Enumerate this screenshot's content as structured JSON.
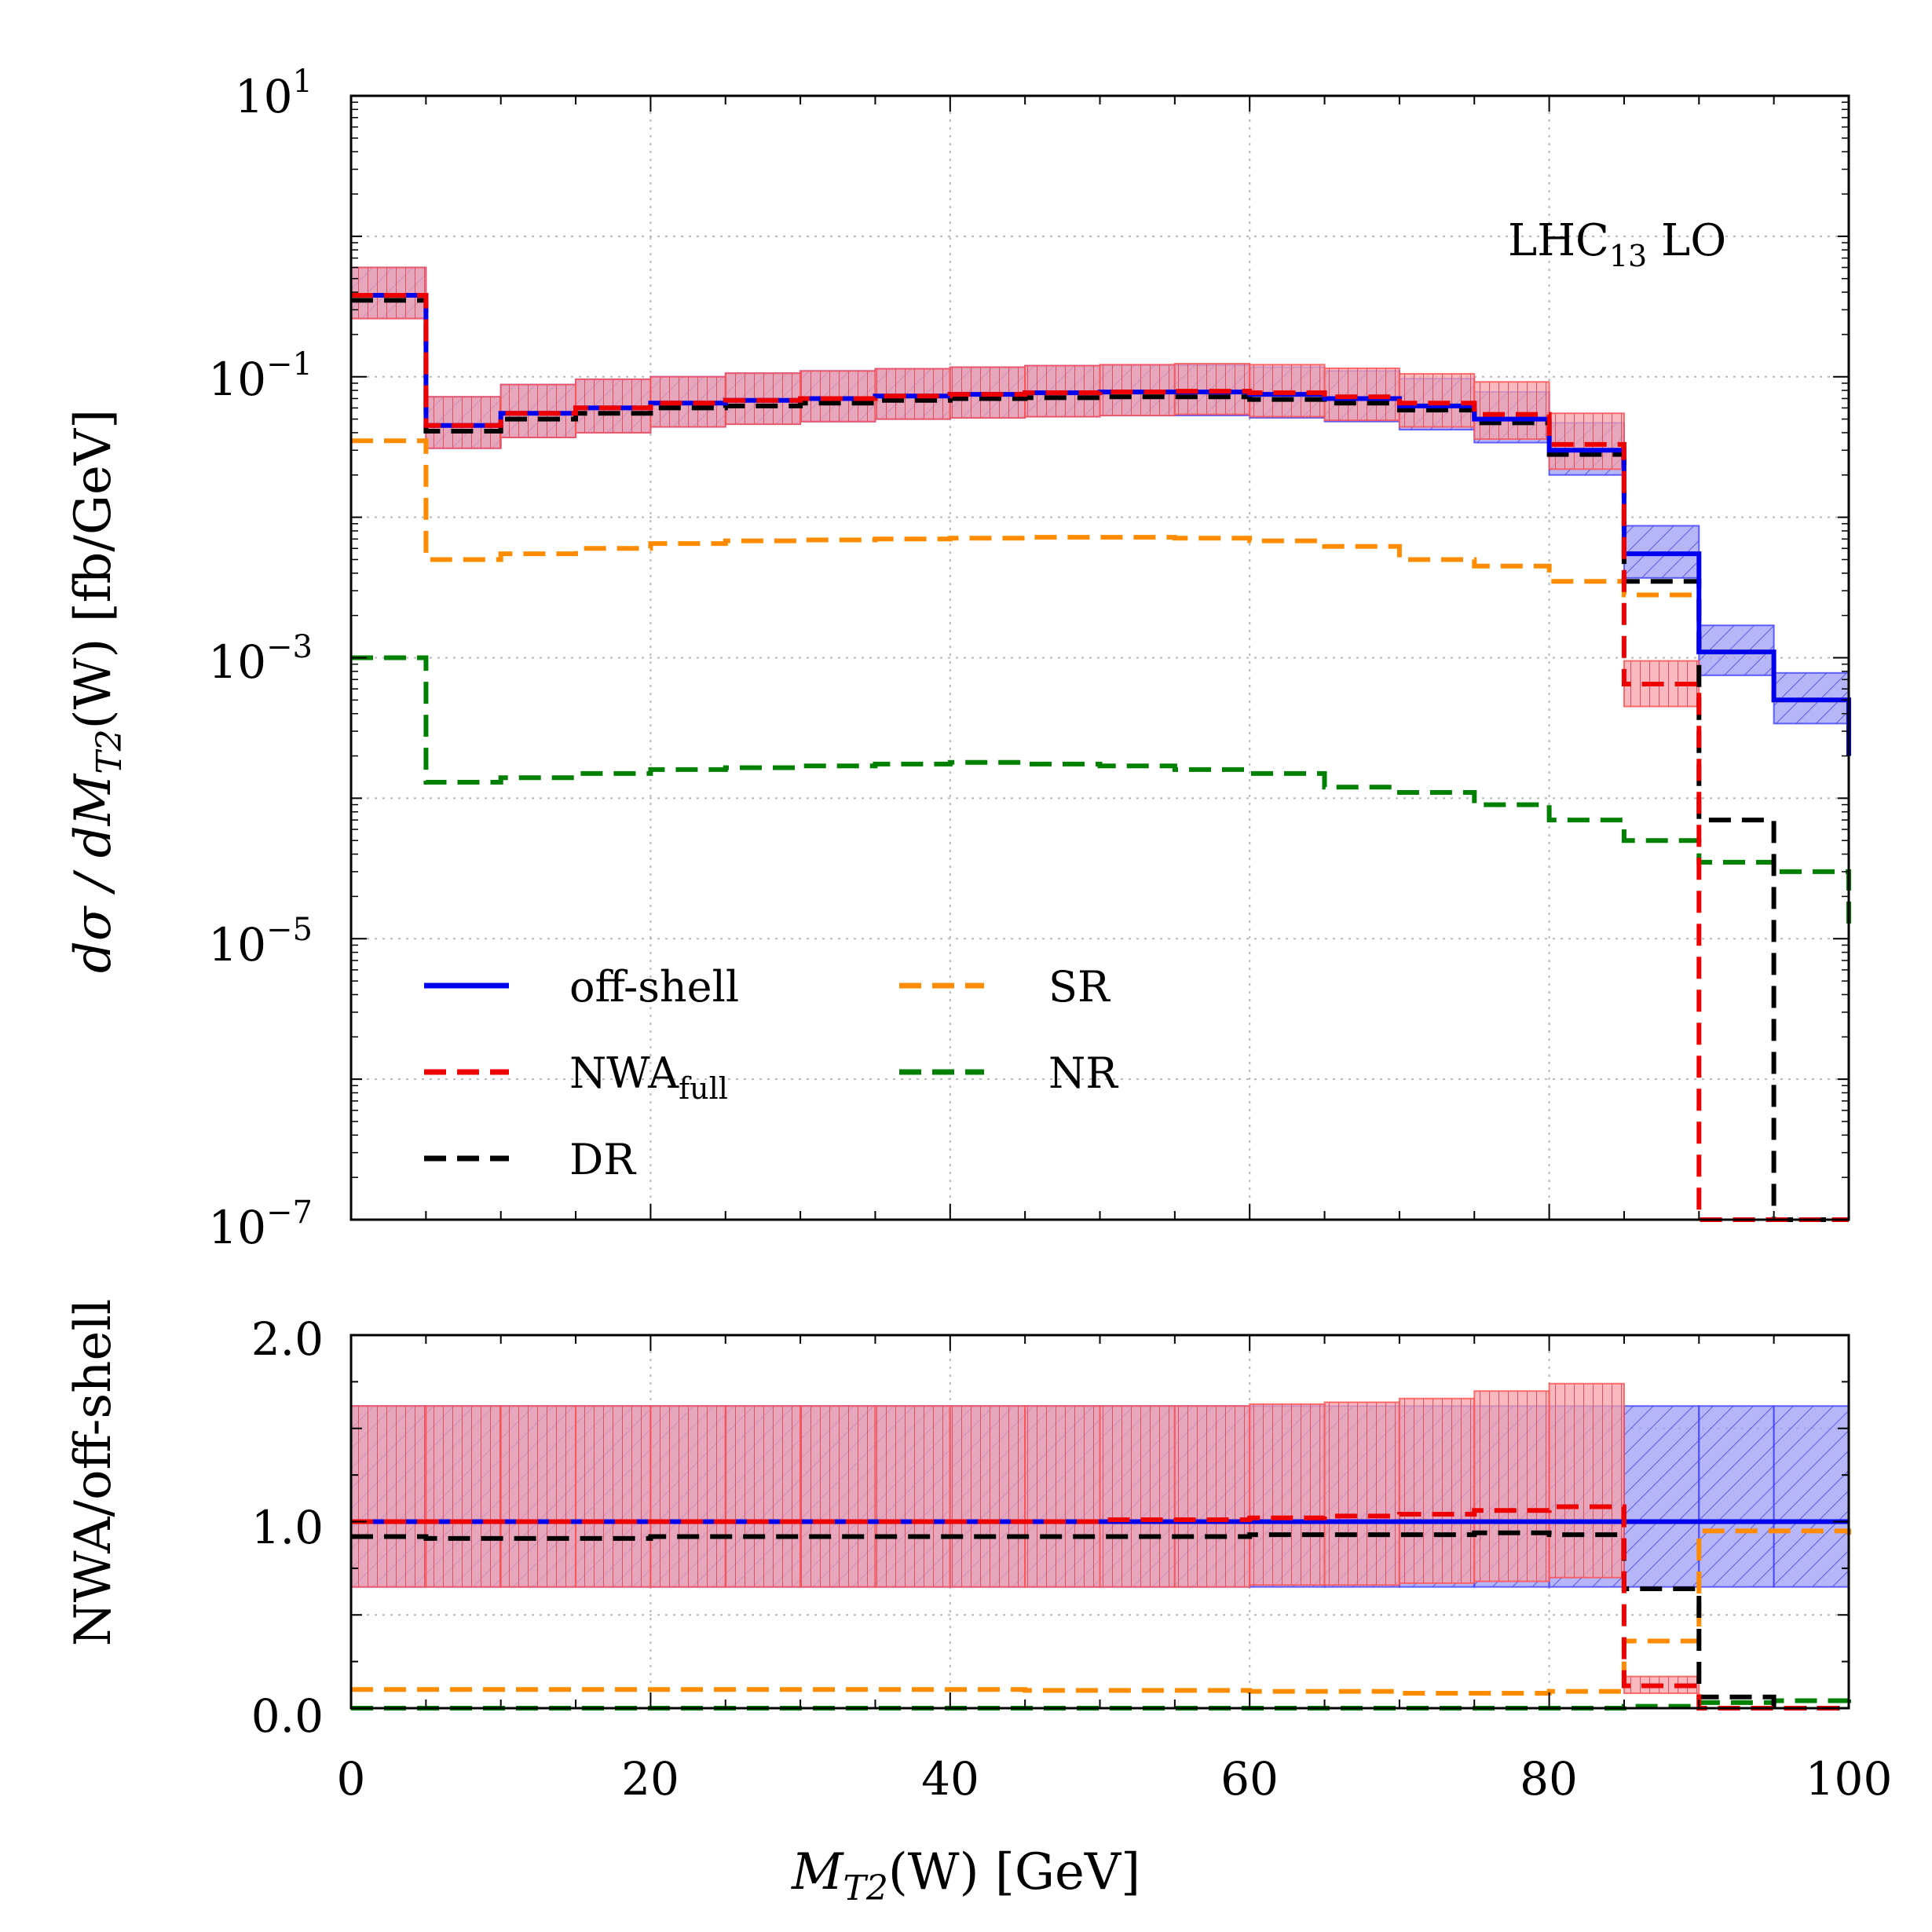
{
  "chart_data": [
    {
      "panel": "main",
      "type": "line",
      "step": true,
      "yscale": "log",
      "xlim": [
        0,
        100
      ],
      "ylim": [
        1e-07,
        10
      ],
      "xlabel": "",
      "ylabel": "dσ/dM_T2(W) [fb/GeV]",
      "ylabel_text": {
        "pre": "dσ / dM",
        "sub": "T2",
        "post": "(W) [fb/GeV]"
      },
      "annotation": {
        "main": "LHC",
        "sub": "13",
        "post": " LO"
      },
      "yticks": [
        {
          "value": 10,
          "mantissa": "10",
          "exponent": "1"
        },
        {
          "value": 0.1,
          "mantissa": "10",
          "exponent": "−1"
        },
        {
          "value": 0.001,
          "mantissa": "10",
          "exponent": "−3"
        },
        {
          "value": 1e-05,
          "mantissa": "10",
          "exponent": "−5"
        },
        {
          "value": 1e-07,
          "mantissa": "10",
          "exponent": "−7"
        }
      ],
      "bin_edges": [
        0,
        5,
        10,
        15,
        20,
        25,
        30,
        35,
        40,
        45,
        50,
        55,
        60,
        65,
        70,
        75,
        80,
        85,
        90,
        95,
        100
      ],
      "series": [
        {
          "name": "off-shell",
          "label": "off-shell",
          "color": "#0000ee",
          "dash": "solid",
          "values": [
            0.38,
            0.045,
            0.055,
            0.06,
            0.065,
            0.068,
            0.07,
            0.073,
            0.075,
            0.077,
            0.078,
            0.078,
            0.075,
            0.07,
            0.062,
            0.05,
            0.03,
            0.0055,
            0.0011,
            0.0005,
            0.0002
          ],
          "band": {
            "color": "#4040ff",
            "lo": [
              0.26,
              0.031,
              0.037,
              0.04,
              0.044,
              0.046,
              0.048,
              0.05,
              0.051,
              0.052,
              0.053,
              0.053,
              0.051,
              0.048,
              0.042,
              0.034,
              0.02,
              0.0037,
              0.00075,
              0.00034,
              0.000135
            ],
            "hi": [
              0.6,
              0.072,
              0.088,
              0.096,
              0.1,
              0.106,
              0.11,
              0.114,
              0.117,
              0.12,
              0.121,
              0.121,
              0.117,
              0.11,
              0.097,
              0.078,
              0.047,
              0.0087,
              0.0017,
              0.00078,
              0.00031
            ]
          }
        },
        {
          "name": "NWA_full",
          "label": "NWA",
          "label_sub": "full",
          "color": "#ee0000",
          "dash": "dashed",
          "values": [
            0.38,
            0.045,
            0.055,
            0.06,
            0.065,
            0.068,
            0.07,
            0.073,
            0.075,
            0.077,
            0.078,
            0.079,
            0.077,
            0.072,
            0.065,
            0.054,
            0.033,
            0.00065,
            1e-07,
            1e-07,
            1e-07
          ],
          "band": {
            "color": "#ff5050",
            "lo": [
              0.26,
              0.031,
              0.037,
              0.04,
              0.044,
              0.046,
              0.048,
              0.05,
              0.051,
              0.052,
              0.053,
              0.054,
              0.052,
              0.049,
              0.044,
              0.036,
              0.022,
              0.00045
            ],
            "hi": [
              0.6,
              0.072,
              0.088,
              0.096,
              0.1,
              0.106,
              0.11,
              0.114,
              0.117,
              0.12,
              0.122,
              0.124,
              0.122,
              0.115,
              0.105,
              0.092,
              0.055,
              0.00095
            ]
          }
        },
        {
          "name": "DR",
          "label": "DR",
          "color": "#000000",
          "dash": "dashed",
          "values": [
            0.35,
            0.041,
            0.05,
            0.055,
            0.06,
            0.062,
            0.065,
            0.068,
            0.07,
            0.071,
            0.072,
            0.072,
            0.069,
            0.065,
            0.058,
            0.047,
            0.028,
            0.0035,
            7e-05,
            1e-07,
            1e-07
          ]
        },
        {
          "name": "SR",
          "label": "SR",
          "color": "#ff8c00",
          "dash": "dashed",
          "values": [
            0.035,
            0.005,
            0.0055,
            0.006,
            0.0065,
            0.0068,
            0.0069,
            0.007,
            0.0071,
            0.0072,
            0.0072,
            0.0071,
            0.0068,
            0.0062,
            0.005,
            0.0045,
            0.0035,
            0.0028,
            0.0011,
            0.0005,
            0.0002
          ]
        },
        {
          "name": "NR",
          "label": "NR",
          "color": "#008000",
          "dash": "dashed",
          "values": [
            0.001,
            0.00013,
            0.00014,
            0.00015,
            0.00016,
            0.000165,
            0.00017,
            0.000175,
            0.00018,
            0.000175,
            0.00017,
            0.00016,
            0.00015,
            0.00012,
            0.00011,
            9e-05,
            7e-05,
            5e-05,
            3.5e-05,
            3e-05,
            1.2e-05
          ]
        }
      ],
      "legend": {
        "placement": "lower-left",
        "columns": 2
      }
    },
    {
      "panel": "ratio",
      "type": "line",
      "step": true,
      "yscale": "linear",
      "xlim": [
        0,
        100
      ],
      "ylim": [
        0,
        2
      ],
      "xlabel": "M_T2(W) [GeV]",
      "xlabel_text": {
        "pre": "M",
        "sub": "T2",
        "post": "(W) [GeV]"
      },
      "ylabel": "NWA/off-shell",
      "xticks": [
        "0",
        "20",
        "40",
        "60",
        "80",
        "100"
      ],
      "yticks": [
        "0.0",
        "1.0",
        "2.0"
      ],
      "bin_edges": [
        0,
        5,
        10,
        15,
        20,
        25,
        30,
        35,
        40,
        45,
        50,
        55,
        60,
        65,
        70,
        75,
        80,
        85,
        90,
        95,
        100
      ],
      "series": [
        {
          "name": "off-shell",
          "color": "#0000ee",
          "dash": "solid",
          "values": [
            1,
            1,
            1,
            1,
            1,
            1,
            1,
            1,
            1,
            1,
            1,
            1,
            1,
            1,
            1,
            1,
            1,
            1,
            1,
            1,
            1
          ],
          "band": {
            "color": "#4040ff",
            "lo": [
              0.65,
              0.65,
              0.65,
              0.65,
              0.65,
              0.65,
              0.65,
              0.65,
              0.65,
              0.65,
              0.65,
              0.65,
              0.65,
              0.65,
              0.65,
              0.65,
              0.65,
              0.65,
              0.65,
              0.65,
              0.65
            ],
            "hi": [
              1.62,
              1.62,
              1.62,
              1.62,
              1.62,
              1.62,
              1.62,
              1.62,
              1.62,
              1.62,
              1.62,
              1.62,
              1.62,
              1.62,
              1.62,
              1.62,
              1.62,
              1.62,
              1.62,
              1.62,
              1.62
            ]
          }
        },
        {
          "name": "NWA_full",
          "color": "#ee0000",
          "dash": "dashed",
          "values": [
            1.0,
            1.0,
            1.0,
            1.0,
            1.0,
            1.0,
            1.0,
            1.0,
            1.0,
            1.0,
            1.01,
            1.01,
            1.02,
            1.03,
            1.04,
            1.06,
            1.08,
            0.12,
            0.0,
            0.0,
            0.0
          ],
          "band": {
            "color": "#ff5050",
            "lo": [
              0.65,
              0.65,
              0.65,
              0.65,
              0.65,
              0.65,
              0.65,
              0.65,
              0.65,
              0.65,
              0.65,
              0.65,
              0.66,
              0.66,
              0.67,
              0.68,
              0.7,
              0.08
            ],
            "hi": [
              1.62,
              1.62,
              1.62,
              1.62,
              1.62,
              1.62,
              1.62,
              1.62,
              1.62,
              1.62,
              1.62,
              1.62,
              1.63,
              1.64,
              1.66,
              1.7,
              1.74,
              0.17
            ]
          }
        },
        {
          "name": "DR",
          "color": "#000000",
          "dash": "dashed",
          "values": [
            0.92,
            0.91,
            0.91,
            0.91,
            0.92,
            0.92,
            0.92,
            0.92,
            0.92,
            0.92,
            0.92,
            0.92,
            0.93,
            0.93,
            0.93,
            0.94,
            0.93,
            0.64,
            0.06,
            0.0,
            0.0
          ]
        },
        {
          "name": "SR",
          "color": "#ff8c00",
          "dash": "dashed",
          "values": [
            0.1,
            0.1,
            0.1,
            0.1,
            0.1,
            0.1,
            0.1,
            0.1,
            0.1,
            0.095,
            0.095,
            0.095,
            0.09,
            0.09,
            0.08,
            0.08,
            0.09,
            0.36,
            0.95,
            0.95,
            0.93
          ]
        },
        {
          "name": "NR",
          "color": "#008000",
          "dash": "dashed",
          "values": [
            0.0,
            0.0,
            0.0,
            0.0,
            0.0,
            0.0,
            0.0,
            0.0,
            0.0,
            0.0,
            0.0,
            0.0,
            0.0,
            0.0,
            0.0,
            0.0,
            0.0,
            0.01,
            0.03,
            0.04,
            0.05
          ]
        }
      ]
    }
  ]
}
